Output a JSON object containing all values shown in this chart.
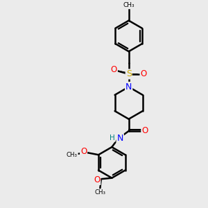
{
  "background_color": "#ebebeb",
  "atom_colors": {
    "C": "#000000",
    "N": "#0000ff",
    "O": "#ff0000",
    "S": "#ccaa00",
    "H": "#008080"
  },
  "bond_color": "#000000",
  "bond_width": 1.8,
  "figsize": [
    3.0,
    3.0
  ],
  "dpi": 100,
  "xlim": [
    0,
    10
  ],
  "ylim": [
    0,
    10
  ]
}
